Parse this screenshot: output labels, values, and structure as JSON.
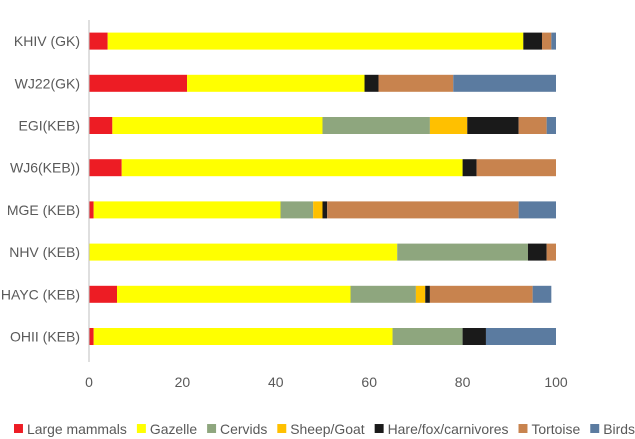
{
  "chart_data": {
    "type": "bar",
    "orientation": "horizontal",
    "stacked": true,
    "title": "",
    "xlabel": "",
    "ylabel": "",
    "xlim": [
      0,
      100
    ],
    "x_ticks": [
      0,
      20,
      40,
      60,
      80,
      100
    ],
    "grid": false,
    "legend_position": "bottom",
    "categories": [
      "KHIV (GK)",
      "WJ22(GK)",
      "EGI(KEB)",
      "WJ6(KEB))",
      "MGE (KEB)",
      "NHV (KEB)",
      "HAYC (KEB)",
      "OHII (KEB)"
    ],
    "series": [
      {
        "name": "Large mammals",
        "color": "#ed1c24",
        "values": [
          4,
          21,
          5,
          7,
          1,
          0,
          6,
          1
        ]
      },
      {
        "name": "Gazelle",
        "color": "#ffff00",
        "values": [
          89,
          38,
          45,
          73,
          40,
          66,
          50,
          64
        ]
      },
      {
        "name": "Cervids",
        "color": "#8ea67e",
        "values": [
          0,
          0,
          23,
          0,
          7,
          28,
          14,
          15
        ]
      },
      {
        "name": "Sheep/Goat",
        "color": "#ffc000",
        "values": [
          0,
          0,
          8,
          0,
          2,
          0,
          2,
          0
        ]
      },
      {
        "name": "Hare/fox/carnivores",
        "color": "#1a1a1a",
        "values": [
          4,
          3,
          11,
          3,
          1,
          4,
          1,
          5
        ]
      },
      {
        "name": "Tortoise",
        "color": "#c8834e",
        "values": [
          2,
          16,
          6,
          17,
          41,
          2,
          22,
          0
        ]
      },
      {
        "name": "Birds",
        "color": "#5b7ba0",
        "values": [
          1,
          22,
          2,
          0,
          8,
          0,
          4,
          15
        ]
      }
    ]
  }
}
